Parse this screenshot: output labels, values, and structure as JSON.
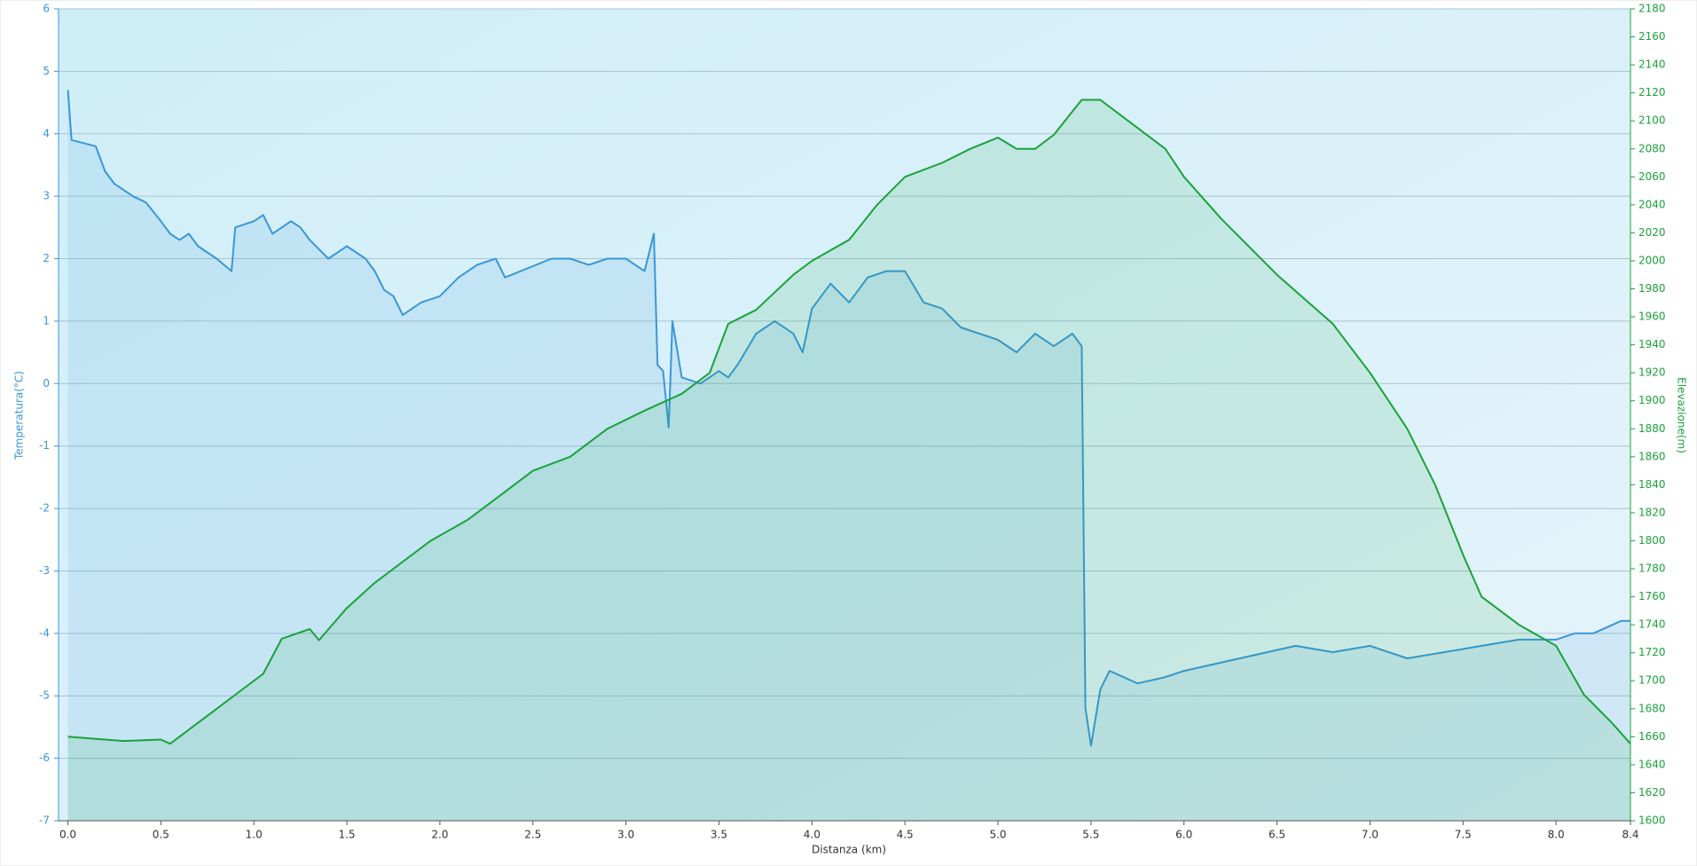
{
  "chart_data": {
    "type": "line",
    "x_label": "Distanza  (km)",
    "y_label": "Temperatura(°C)",
    "y2_label": "Elevazione(m)",
    "xlim": [
      -0.05,
      8.4
    ],
    "xticks": [
      {
        "value": 0,
        "label": "0.0"
      },
      0.5,
      {
        "value": 1,
        "label": "1.0"
      },
      1.5,
      {
        "value": 2,
        "label": "2.0"
      },
      2.5,
      {
        "value": 3,
        "label": "3.0"
      },
      3.5,
      {
        "value": 4,
        "label": "4.0"
      },
      4.5,
      {
        "value": 5,
        "label": "5.0"
      },
      5.5,
      {
        "value": 6,
        "label": "6.0"
      },
      6.5,
      {
        "value": 7,
        "label": "7.0"
      },
      7.5,
      {
        "value": 8,
        "label": "8.0"
      },
      8.4
    ],
    "ylim": [
      -7,
      6
    ],
    "yticks": [
      -7,
      -6,
      -5,
      -4,
      -3,
      -2,
      -1,
      0,
      1,
      2,
      3,
      4,
      5,
      6
    ],
    "y2lim": [
      1600,
      2180
    ],
    "y2ticks": [
      1600,
      1620,
      1640,
      1660,
      1680,
      1700,
      1720,
      1740,
      1760,
      1780,
      1800,
      1820,
      1840,
      1860,
      1880,
      1900,
      1920,
      1940,
      1960,
      1980,
      2000,
      2020,
      2040,
      2060,
      2080,
      2100,
      2120,
      2140,
      2160,
      2180
    ],
    "grid": true,
    "series": [
      {
        "color": "#3a96d8",
        "axis": "y",
        "x": [
          0,
          0.02,
          0.15,
          0.2,
          0.25,
          0.35,
          0.42,
          0.5,
          0.55,
          0.6,
          0.65,
          0.7,
          0.8,
          0.88,
          0.9,
          1.0,
          1.05,
          1.1,
          1.2,
          1.25,
          1.3,
          1.4,
          1.5,
          1.6,
          1.65,
          1.7,
          1.75,
          1.8,
          1.9,
          2.0,
          2.1,
          2.2,
          2.3,
          2.35,
          2.6,
          2.7,
          2.8,
          2.9,
          3.0,
          3.1,
          3.15,
          3.17,
          3.2,
          3.23,
          3.25,
          3.3,
          3.4,
          3.5,
          3.55,
          3.6,
          3.7,
          3.8,
          3.9,
          3.95,
          4.0,
          4.05,
          4.1,
          4.2,
          4.3,
          4.4,
          4.5,
          4.6,
          4.7,
          4.8,
          4.9,
          5.0,
          5.1,
          5.2,
          5.3,
          5.4,
          5.45,
          5.47,
          5.5,
          5.55,
          5.6,
          5.75,
          5.9,
          6.0,
          6.3,
          6.6,
          6.8,
          7.0,
          7.2,
          7.6,
          7.8,
          8.0,
          8.1,
          8.2,
          8.35,
          8.4
        ],
        "values": [
          4.7,
          3.9,
          3.8,
          3.4,
          3.2,
          3.0,
          2.9,
          2.6,
          2.4,
          2.3,
          2.4,
          2.2,
          2.0,
          1.8,
          2.5,
          2.6,
          2.7,
          2.4,
          2.6,
          2.5,
          2.3,
          2.0,
          2.2,
          2.0,
          1.8,
          1.5,
          1.4,
          1.1,
          1.3,
          1.4,
          1.7,
          1.9,
          2.0,
          1.7,
          2.0,
          2.0,
          1.9,
          2.0,
          2.0,
          1.8,
          2.4,
          0.3,
          0.2,
          -0.7,
          1.0,
          0.1,
          0.0,
          0.2,
          0.1,
          0.3,
          0.8,
          1.0,
          0.8,
          0.5,
          1.2,
          1.4,
          1.6,
          1.3,
          1.7,
          1.8,
          1.8,
          1.3,
          1.2,
          0.9,
          0.8,
          0.7,
          0.5,
          0.8,
          0.6,
          0.8,
          0.6,
          -5.2,
          -5.8,
          -4.9,
          -4.6,
          -4.8,
          -4.7,
          -4.6,
          -4.4,
          -4.2,
          -4.3,
          -4.2,
          -4.4,
          -4.2,
          -4.1,
          -4.1,
          -4.0,
          -4.0,
          -3.8,
          -3.8
        ]
      },
      {
        "color": "#1aa23a",
        "axis": "y2",
        "x": [
          0,
          0.3,
          0.5,
          0.55,
          0.7,
          0.9,
          1.05,
          1.15,
          1.3,
          1.35,
          1.5,
          1.65,
          1.75,
          1.95,
          2.15,
          2.3,
          2.5,
          2.7,
          2.9,
          3.1,
          3.3,
          3.45,
          3.55,
          3.7,
          3.9,
          4.0,
          4.2,
          4.35,
          4.5,
          4.7,
          4.85,
          5.0,
          5.1,
          5.2,
          5.3,
          5.45,
          5.55,
          5.7,
          5.9,
          6.0,
          6.2,
          6.5,
          6.8,
          7.0,
          7.2,
          7.35,
          7.5,
          7.6,
          7.8,
          8.0,
          8.15,
          8.3,
          8.4
        ],
        "values": [
          1660,
          1657,
          1658,
          1655,
          1670,
          1690,
          1705,
          1730,
          1737,
          1729,
          1752,
          1770,
          1780,
          1800,
          1815,
          1830,
          1850,
          1860,
          1880,
          1893,
          1905,
          1920,
          1955,
          1965,
          1990,
          2000,
          2015,
          2040,
          2060,
          2070,
          2080,
          2088,
          2080,
          2080,
          2090,
          2115,
          2115,
          2100,
          2080,
          2060,
          2030,
          1990,
          1955,
          1920,
          1880,
          1840,
          1790,
          1760,
          1740,
          1725,
          1690,
          1670,
          1655
        ]
      }
    ]
  }
}
